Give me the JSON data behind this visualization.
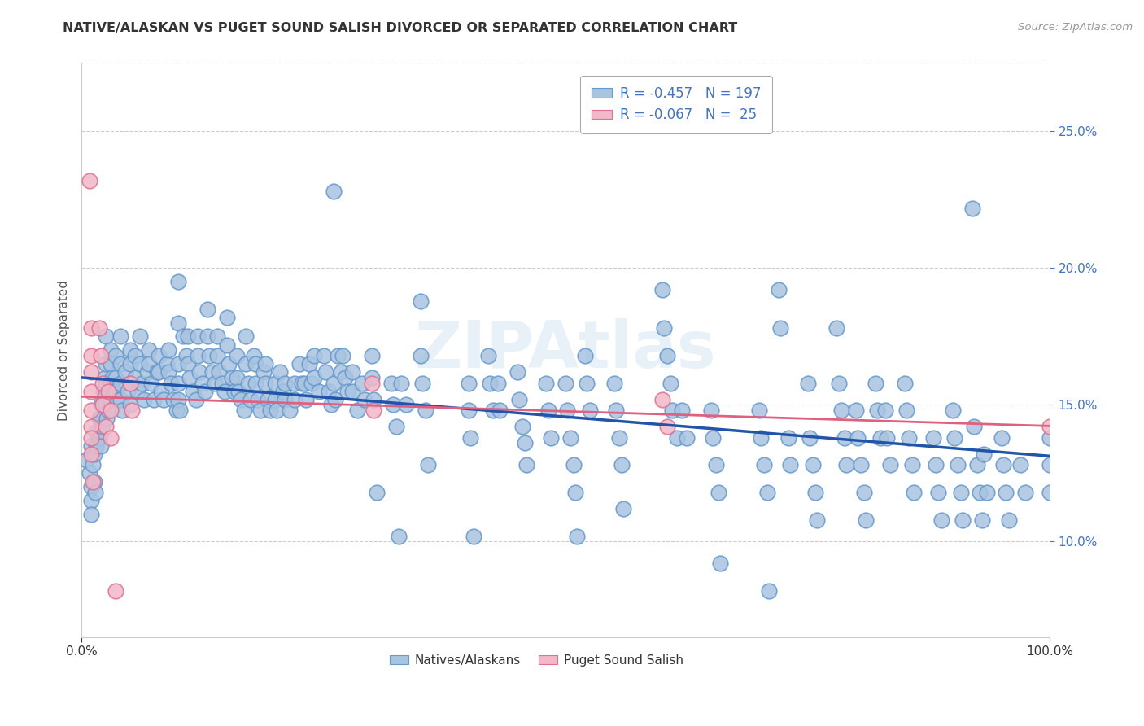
{
  "title": "NATIVE/ALASKAN VS PUGET SOUND SALISH DIVORCED OR SEPARATED CORRELATION CHART",
  "source": "Source: ZipAtlas.com",
  "ylabel": "Divorced or Separated",
  "xlim": [
    0.0,
    1.0
  ],
  "ylim": [
    0.065,
    0.275
  ],
  "yticks": [
    0.1,
    0.15,
    0.2,
    0.25
  ],
  "ytick_labels": [
    "10.0%",
    "15.0%",
    "20.0%",
    "25.0%"
  ],
  "blue_color": "#a8c4e0",
  "blue_edge_color": "#6699cc",
  "pink_color": "#f0b8c8",
  "pink_edge_color": "#e07090",
  "blue_line_color": "#2255aa",
  "pink_line_color": "#e06080",
  "watermark": "ZIPAtlas",
  "blue_scatter": [
    [
      0.005,
      0.13
    ],
    [
      0.008,
      0.125
    ],
    [
      0.01,
      0.12
    ],
    [
      0.01,
      0.115
    ],
    [
      0.01,
      0.11
    ],
    [
      0.01,
      0.135
    ],
    [
      0.012,
      0.128
    ],
    [
      0.013,
      0.122
    ],
    [
      0.013,
      0.132
    ],
    [
      0.014,
      0.118
    ],
    [
      0.015,
      0.14
    ],
    [
      0.015,
      0.135
    ],
    [
      0.018,
      0.145
    ],
    [
      0.018,
      0.138
    ],
    [
      0.02,
      0.15
    ],
    [
      0.02,
      0.145
    ],
    [
      0.02,
      0.14
    ],
    [
      0.02,
      0.135
    ],
    [
      0.022,
      0.142
    ],
    [
      0.023,
      0.155
    ],
    [
      0.024,
      0.16
    ],
    [
      0.025,
      0.175
    ],
    [
      0.025,
      0.165
    ],
    [
      0.025,
      0.158
    ],
    [
      0.025,
      0.15
    ],
    [
      0.026,
      0.145
    ],
    [
      0.028,
      0.148
    ],
    [
      0.03,
      0.17
    ],
    [
      0.03,
      0.165
    ],
    [
      0.03,
      0.158
    ],
    [
      0.03,
      0.152
    ],
    [
      0.032,
      0.16
    ],
    [
      0.033,
      0.155
    ],
    [
      0.035,
      0.168
    ],
    [
      0.035,
      0.16
    ],
    [
      0.035,
      0.155
    ],
    [
      0.038,
      0.152
    ],
    [
      0.04,
      0.175
    ],
    [
      0.04,
      0.165
    ],
    [
      0.04,
      0.158
    ],
    [
      0.04,
      0.152
    ],
    [
      0.042,
      0.148
    ],
    [
      0.045,
      0.162
    ],
    [
      0.048,
      0.155
    ],
    [
      0.05,
      0.17
    ],
    [
      0.05,
      0.165
    ],
    [
      0.05,
      0.158
    ],
    [
      0.05,
      0.15
    ],
    [
      0.055,
      0.168
    ],
    [
      0.055,
      0.16
    ],
    [
      0.058,
      0.155
    ],
    [
      0.06,
      0.175
    ],
    [
      0.06,
      0.165
    ],
    [
      0.062,
      0.158
    ],
    [
      0.065,
      0.152
    ],
    [
      0.068,
      0.162
    ],
    [
      0.07,
      0.17
    ],
    [
      0.07,
      0.165
    ],
    [
      0.072,
      0.158
    ],
    [
      0.075,
      0.152
    ],
    [
      0.078,
      0.162
    ],
    [
      0.08,
      0.168
    ],
    [
      0.08,
      0.162
    ],
    [
      0.082,
      0.155
    ],
    [
      0.085,
      0.152
    ],
    [
      0.088,
      0.165
    ],
    [
      0.09,
      0.17
    ],
    [
      0.09,
      0.162
    ],
    [
      0.092,
      0.158
    ],
    [
      0.095,
      0.152
    ],
    [
      0.098,
      0.148
    ],
    [
      0.1,
      0.195
    ],
    [
      0.1,
      0.18
    ],
    [
      0.1,
      0.165
    ],
    [
      0.1,
      0.158
    ],
    [
      0.1,
      0.152
    ],
    [
      0.102,
      0.148
    ],
    [
      0.105,
      0.175
    ],
    [
      0.108,
      0.168
    ],
    [
      0.11,
      0.175
    ],
    [
      0.11,
      0.165
    ],
    [
      0.112,
      0.16
    ],
    [
      0.115,
      0.155
    ],
    [
      0.118,
      0.152
    ],
    [
      0.12,
      0.175
    ],
    [
      0.12,
      0.168
    ],
    [
      0.122,
      0.162
    ],
    [
      0.125,
      0.158
    ],
    [
      0.128,
      0.155
    ],
    [
      0.13,
      0.185
    ],
    [
      0.13,
      0.175
    ],
    [
      0.132,
      0.168
    ],
    [
      0.135,
      0.162
    ],
    [
      0.138,
      0.158
    ],
    [
      0.14,
      0.175
    ],
    [
      0.14,
      0.168
    ],
    [
      0.142,
      0.162
    ],
    [
      0.145,
      0.158
    ],
    [
      0.148,
      0.155
    ],
    [
      0.15,
      0.182
    ],
    [
      0.15,
      0.172
    ],
    [
      0.152,
      0.165
    ],
    [
      0.155,
      0.16
    ],
    [
      0.158,
      0.155
    ],
    [
      0.16,
      0.168
    ],
    [
      0.16,
      0.16
    ],
    [
      0.162,
      0.155
    ],
    [
      0.165,
      0.152
    ],
    [
      0.168,
      0.148
    ],
    [
      0.17,
      0.175
    ],
    [
      0.17,
      0.165
    ],
    [
      0.172,
      0.158
    ],
    [
      0.175,
      0.152
    ],
    [
      0.178,
      0.168
    ],
    [
      0.18,
      0.165
    ],
    [
      0.18,
      0.158
    ],
    [
      0.182,
      0.152
    ],
    [
      0.185,
      0.148
    ],
    [
      0.188,
      0.162
    ],
    [
      0.19,
      0.165
    ],
    [
      0.19,
      0.158
    ],
    [
      0.192,
      0.152
    ],
    [
      0.195,
      0.148
    ],
    [
      0.2,
      0.158
    ],
    [
      0.2,
      0.152
    ],
    [
      0.202,
      0.148
    ],
    [
      0.205,
      0.162
    ],
    [
      0.208,
      0.155
    ],
    [
      0.21,
      0.158
    ],
    [
      0.21,
      0.152
    ],
    [
      0.215,
      0.148
    ],
    [
      0.22,
      0.158
    ],
    [
      0.22,
      0.152
    ],
    [
      0.225,
      0.165
    ],
    [
      0.228,
      0.158
    ],
    [
      0.23,
      0.158
    ],
    [
      0.232,
      0.152
    ],
    [
      0.235,
      0.165
    ],
    [
      0.238,
      0.158
    ],
    [
      0.24,
      0.168
    ],
    [
      0.24,
      0.16
    ],
    [
      0.245,
      0.155
    ],
    [
      0.25,
      0.168
    ],
    [
      0.252,
      0.162
    ],
    [
      0.255,
      0.155
    ],
    [
      0.258,
      0.15
    ],
    [
      0.26,
      0.228
    ],
    [
      0.26,
      0.158
    ],
    [
      0.262,
      0.152
    ],
    [
      0.265,
      0.168
    ],
    [
      0.268,
      0.162
    ],
    [
      0.27,
      0.168
    ],
    [
      0.272,
      0.16
    ],
    [
      0.275,
      0.155
    ],
    [
      0.28,
      0.162
    ],
    [
      0.28,
      0.155
    ],
    [
      0.285,
      0.148
    ],
    [
      0.29,
      0.158
    ],
    [
      0.292,
      0.152
    ],
    [
      0.3,
      0.168
    ],
    [
      0.3,
      0.16
    ],
    [
      0.302,
      0.152
    ],
    [
      0.305,
      0.118
    ],
    [
      0.32,
      0.158
    ],
    [
      0.322,
      0.15
    ],
    [
      0.325,
      0.142
    ],
    [
      0.328,
      0.102
    ],
    [
      0.33,
      0.158
    ],
    [
      0.335,
      0.15
    ],
    [
      0.35,
      0.188
    ],
    [
      0.35,
      0.168
    ],
    [
      0.352,
      0.158
    ],
    [
      0.355,
      0.148
    ],
    [
      0.358,
      0.128
    ],
    [
      0.4,
      0.158
    ],
    [
      0.4,
      0.148
    ],
    [
      0.402,
      0.138
    ],
    [
      0.405,
      0.102
    ],
    [
      0.42,
      0.168
    ],
    [
      0.422,
      0.158
    ],
    [
      0.425,
      0.148
    ],
    [
      0.43,
      0.158
    ],
    [
      0.432,
      0.148
    ],
    [
      0.45,
      0.162
    ],
    [
      0.452,
      0.152
    ],
    [
      0.455,
      0.142
    ],
    [
      0.458,
      0.136
    ],
    [
      0.46,
      0.128
    ],
    [
      0.48,
      0.158
    ],
    [
      0.482,
      0.148
    ],
    [
      0.485,
      0.138
    ],
    [
      0.5,
      0.158
    ],
    [
      0.502,
      0.148
    ],
    [
      0.505,
      0.138
    ],
    [
      0.508,
      0.128
    ],
    [
      0.51,
      0.118
    ],
    [
      0.512,
      0.102
    ],
    [
      0.52,
      0.168
    ],
    [
      0.522,
      0.158
    ],
    [
      0.525,
      0.148
    ],
    [
      0.55,
      0.158
    ],
    [
      0.552,
      0.148
    ],
    [
      0.555,
      0.138
    ],
    [
      0.558,
      0.128
    ],
    [
      0.56,
      0.112
    ],
    [
      0.6,
      0.192
    ],
    [
      0.602,
      0.178
    ],
    [
      0.605,
      0.168
    ],
    [
      0.608,
      0.158
    ],
    [
      0.61,
      0.148
    ],
    [
      0.615,
      0.138
    ],
    [
      0.62,
      0.148
    ],
    [
      0.625,
      0.138
    ],
    [
      0.65,
      0.148
    ],
    [
      0.652,
      0.138
    ],
    [
      0.655,
      0.128
    ],
    [
      0.658,
      0.118
    ],
    [
      0.66,
      0.092
    ],
    [
      0.7,
      0.148
    ],
    [
      0.702,
      0.138
    ],
    [
      0.705,
      0.128
    ],
    [
      0.708,
      0.118
    ],
    [
      0.71,
      0.082
    ],
    [
      0.72,
      0.192
    ],
    [
      0.722,
      0.178
    ],
    [
      0.73,
      0.138
    ],
    [
      0.732,
      0.128
    ],
    [
      0.75,
      0.158
    ],
    [
      0.752,
      0.138
    ],
    [
      0.755,
      0.128
    ],
    [
      0.758,
      0.118
    ],
    [
      0.76,
      0.108
    ],
    [
      0.78,
      0.178
    ],
    [
      0.782,
      0.158
    ],
    [
      0.785,
      0.148
    ],
    [
      0.788,
      0.138
    ],
    [
      0.79,
      0.128
    ],
    [
      0.8,
      0.148
    ],
    [
      0.802,
      0.138
    ],
    [
      0.805,
      0.128
    ],
    [
      0.808,
      0.118
    ],
    [
      0.81,
      0.108
    ],
    [
      0.82,
      0.158
    ],
    [
      0.822,
      0.148
    ],
    [
      0.825,
      0.138
    ],
    [
      0.83,
      0.148
    ],
    [
      0.832,
      0.138
    ],
    [
      0.835,
      0.128
    ],
    [
      0.85,
      0.158
    ],
    [
      0.852,
      0.148
    ],
    [
      0.855,
      0.138
    ],
    [
      0.858,
      0.128
    ],
    [
      0.86,
      0.118
    ],
    [
      0.88,
      0.138
    ],
    [
      0.882,
      0.128
    ],
    [
      0.885,
      0.118
    ],
    [
      0.888,
      0.108
    ],
    [
      0.9,
      0.148
    ],
    [
      0.902,
      0.138
    ],
    [
      0.905,
      0.128
    ],
    [
      0.908,
      0.118
    ],
    [
      0.91,
      0.108
    ],
    [
      0.92,
      0.222
    ],
    [
      0.922,
      0.142
    ],
    [
      0.925,
      0.128
    ],
    [
      0.928,
      0.118
    ],
    [
      0.93,
      0.108
    ],
    [
      0.932,
      0.132
    ],
    [
      0.935,
      0.118
    ],
    [
      0.95,
      0.138
    ],
    [
      0.952,
      0.128
    ],
    [
      0.955,
      0.118
    ],
    [
      0.958,
      0.108
    ],
    [
      0.97,
      0.128
    ],
    [
      0.975,
      0.118
    ],
    [
      1.0,
      0.138
    ],
    [
      1.0,
      0.128
    ],
    [
      1.0,
      0.118
    ]
  ],
  "pink_scatter": [
    [
      0.008,
      0.232
    ],
    [
      0.01,
      0.178
    ],
    [
      0.01,
      0.168
    ],
    [
      0.01,
      0.162
    ],
    [
      0.01,
      0.155
    ],
    [
      0.01,
      0.148
    ],
    [
      0.01,
      0.142
    ],
    [
      0.01,
      0.138
    ],
    [
      0.01,
      0.132
    ],
    [
      0.012,
      0.122
    ],
    [
      0.018,
      0.178
    ],
    [
      0.02,
      0.168
    ],
    [
      0.022,
      0.158
    ],
    [
      0.022,
      0.15
    ],
    [
      0.025,
      0.142
    ],
    [
      0.028,
      0.155
    ],
    [
      0.03,
      0.148
    ],
    [
      0.03,
      0.138
    ],
    [
      0.035,
      0.082
    ],
    [
      0.05,
      0.158
    ],
    [
      0.052,
      0.148
    ],
    [
      0.3,
      0.158
    ],
    [
      0.302,
      0.148
    ],
    [
      0.6,
      0.152
    ],
    [
      0.605,
      0.142
    ],
    [
      1.0,
      0.142
    ]
  ]
}
